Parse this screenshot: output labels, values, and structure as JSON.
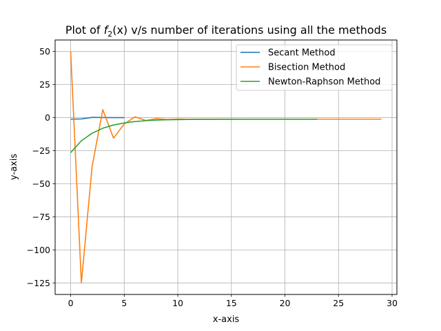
{
  "chart_data": {
    "type": "line",
    "title_prefix": "Plot of ",
    "title_f": "f",
    "title_sub": "2",
    "title_suffix": "(x) v/s number of iterations using all the methods",
    "xlabel": "x-axis",
    "ylabel": "y-axis",
    "xlim": [
      -1.45,
      30.45
    ],
    "ylim": [
      -133.7,
      58.7
    ],
    "xticks": [
      0,
      5,
      10,
      15,
      20,
      25,
      30
    ],
    "xtick_labels": [
      "0",
      "5",
      "10",
      "15",
      "20",
      "25",
      "30"
    ],
    "yticks": [
      50,
      25,
      0,
      -25,
      -50,
      -75,
      -100,
      -125
    ],
    "ytick_labels": [
      "50",
      "25",
      "0",
      "−25",
      "−50",
      "−75",
      "−100",
      "−125"
    ],
    "grid": true,
    "legend_position": "top-right",
    "series": [
      {
        "name": "Secant Method",
        "color": "#1f77b4",
        "x": [
          0,
          1,
          2,
          3,
          4,
          5
        ],
        "y": [
          -1.2,
          -1.0,
          0.2,
          0.1,
          0.0,
          0.0
        ]
      },
      {
        "name": "Bisection Method",
        "color": "#ff7f0e",
        "x": [
          0,
          1,
          2,
          3,
          4,
          5,
          6,
          7,
          8,
          9,
          10,
          11,
          12,
          13,
          14,
          15,
          16,
          17,
          18,
          19,
          20,
          21,
          22,
          23,
          24,
          25,
          26,
          27,
          28,
          29
        ],
        "y": [
          50,
          -125,
          -37,
          6,
          -15.5,
          -4.8,
          0.6,
          -2.1,
          -0.8,
          -1.4,
          -1.1,
          -1.3,
          -1.2,
          -1.2,
          -1.2,
          -1.2,
          -1.2,
          -1.2,
          -1.2,
          -1.2,
          -1.2,
          -1.2,
          -1.2,
          -1.2,
          -1.2,
          -1.2,
          -1.2,
          -1.2,
          -1.2,
          -1.2
        ]
      },
      {
        "name": "Newton-Raphson Method",
        "color": "#2ca02c",
        "x": [
          0,
          1,
          2,
          3,
          4,
          5,
          6,
          7,
          8,
          9,
          10,
          11,
          12,
          13,
          14,
          15,
          16,
          17,
          18,
          19,
          20,
          21,
          22,
          23
        ],
        "y": [
          -26.5,
          -17.5,
          -11.8,
          -8.0,
          -5.6,
          -4.0,
          -3.0,
          -2.3,
          -1.9,
          -1.6,
          -1.5,
          -1.4,
          -1.3,
          -1.3,
          -1.25,
          -1.25,
          -1.2,
          -1.2,
          -1.2,
          -1.2,
          -1.2,
          -1.2,
          -1.2,
          -1.2
        ]
      }
    ]
  }
}
